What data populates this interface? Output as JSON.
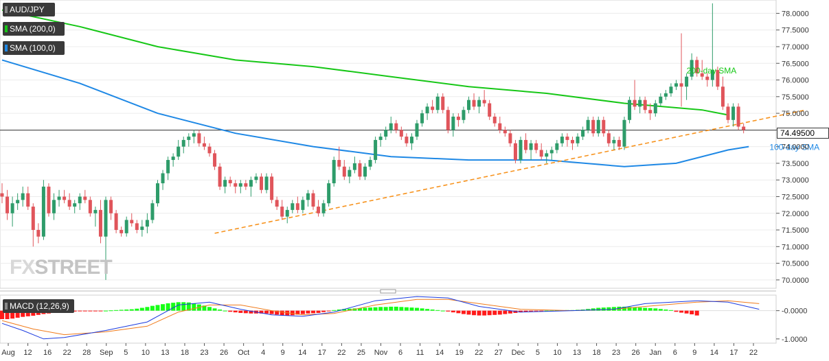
{
  "symbol": "AUD/JPY",
  "legend": [
    {
      "label": "SMA (200,0)",
      "bg": "#3a3a3a",
      "swatch": "#16c716"
    },
    {
      "label": "SMA (100,0)",
      "bg": "#3a3a3a",
      "swatch": "#1e88e5"
    }
  ],
  "watermark": {
    "fx": "FX",
    "street": "STREET"
  },
  "last_price": "74.49500",
  "macd_label": "MACD (12,26,9)",
  "colors": {
    "sma200": "#16c716",
    "sma100": "#1e88e5",
    "trendline": "#f7931e",
    "bull": "#2e9c6a",
    "bear": "#e0555b",
    "macd_pos": "#16ff16",
    "macd_neg": "#ff1a1a",
    "macd_line": "#1a3adf",
    "signal_line": "#f07a1a"
  },
  "chart_data": [
    {
      "type": "candlestick",
      "title": "AUD/JPY",
      "ylim": [
        69.75,
        78.4
      ],
      "y_ticks": [
        "78.0000",
        "77.5000",
        "77.0000",
        "76.5000",
        "76.0000",
        "75.5000",
        "75.0000",
        "74.5000",
        "74.0000",
        "73.5000",
        "73.0000",
        "72.5000",
        "72.0000",
        "71.5000",
        "71.0000",
        "70.5000",
        "70.0000"
      ],
      "x_tick_labels": [
        "Aug",
        "12",
        "16",
        "22",
        "28",
        "Sep",
        "5",
        "10",
        "13",
        "18",
        "23",
        "26",
        "Oct",
        "4",
        "9",
        "14",
        "17",
        "22",
        "25",
        "Nov",
        "6",
        "11",
        "14",
        "19",
        "22",
        "27",
        "Dec",
        "5",
        "10",
        "13",
        "18",
        "23",
        "26",
        "Jan",
        "6",
        "9",
        "14",
        "17",
        "22"
      ],
      "candles": [
        [
          72.6,
          72.9,
          72.3,
          72.5
        ],
        [
          72.5,
          72.7,
          71.8,
          72.0
        ],
        [
          72.0,
          72.5,
          71.6,
          72.3
        ],
        [
          72.3,
          72.6,
          72.1,
          72.4
        ],
        [
          72.4,
          72.8,
          72.2,
          72.6
        ],
        [
          72.6,
          72.8,
          72.1,
          72.2
        ],
        [
          72.2,
          72.3,
          71.0,
          71.5
        ],
        [
          71.5,
          71.7,
          71.1,
          71.3
        ],
        [
          71.3,
          73.0,
          71.2,
          72.8
        ],
        [
          72.8,
          72.9,
          71.9,
          72.0
        ],
        [
          72.0,
          72.6,
          71.8,
          72.4
        ],
        [
          72.4,
          72.7,
          72.2,
          72.5
        ],
        [
          72.5,
          72.7,
          72.3,
          72.4
        ],
        [
          72.4,
          72.6,
          72.1,
          72.2
        ],
        [
          72.2,
          72.4,
          72.0,
          72.3
        ],
        [
          72.3,
          72.6,
          72.1,
          72.5
        ],
        [
          72.5,
          72.7,
          72.3,
          72.4
        ],
        [
          72.4,
          72.5,
          71.9,
          72.0
        ],
        [
          72.0,
          72.2,
          71.6,
          72.1
        ],
        [
          72.1,
          72.4,
          71.1,
          71.3
        ],
        [
          71.3,
          72.5,
          70.0,
          72.4
        ],
        [
          72.4,
          72.5,
          71.8,
          72.0
        ],
        [
          72.0,
          72.1,
          71.4,
          71.5
        ],
        [
          71.5,
          71.6,
          71.3,
          71.4
        ],
        [
          71.4,
          71.9,
          71.3,
          71.8
        ],
        [
          71.8,
          72.0,
          71.6,
          71.7
        ],
        [
          71.7,
          71.8,
          71.4,
          71.5
        ],
        [
          71.5,
          71.8,
          71.3,
          71.6
        ],
        [
          71.6,
          72.0,
          71.4,
          71.8
        ],
        [
          71.8,
          72.4,
          71.7,
          72.3
        ],
        [
          72.3,
          73.0,
          72.2,
          72.9
        ],
        [
          72.9,
          73.3,
          72.7,
          73.2
        ],
        [
          73.2,
          73.7,
          73.0,
          73.6
        ],
        [
          73.6,
          73.8,
          73.4,
          73.7
        ],
        [
          73.7,
          74.2,
          73.6,
          74.0
        ],
        [
          74.0,
          74.3,
          73.8,
          74.2
        ],
        [
          74.2,
          74.4,
          74.0,
          74.3
        ],
        [
          74.3,
          74.5,
          74.1,
          74.4
        ],
        [
          74.4,
          74.5,
          74.0,
          74.1
        ],
        [
          74.1,
          74.3,
          73.9,
          74.0
        ],
        [
          74.0,
          74.1,
          73.7,
          73.8
        ],
        [
          73.8,
          73.9,
          73.3,
          73.4
        ],
        [
          73.4,
          73.5,
          72.7,
          72.8
        ],
        [
          72.8,
          73.1,
          72.6,
          73.0
        ],
        [
          73.0,
          73.1,
          72.8,
          72.9
        ],
        [
          72.9,
          73.0,
          72.6,
          72.8
        ],
        [
          72.8,
          73.0,
          72.6,
          72.9
        ],
        [
          72.9,
          73.0,
          72.7,
          72.8
        ],
        [
          72.8,
          73.1,
          72.5,
          73.0
        ],
        [
          73.0,
          73.2,
          72.9,
          73.1
        ],
        [
          73.1,
          73.2,
          72.6,
          72.7
        ],
        [
          72.7,
          73.2,
          72.6,
          73.1
        ],
        [
          73.1,
          73.2,
          72.3,
          72.4
        ],
        [
          72.4,
          72.5,
          72.1,
          72.2
        ],
        [
          72.2,
          72.4,
          71.8,
          71.9
        ],
        [
          71.9,
          72.2,
          71.7,
          72.1
        ],
        [
          72.1,
          72.4,
          72.0,
          72.3
        ],
        [
          72.3,
          72.5,
          72.0,
          72.1
        ],
        [
          72.1,
          72.5,
          72.0,
          72.4
        ],
        [
          72.4,
          72.7,
          72.2,
          72.6
        ],
        [
          72.6,
          72.7,
          72.1,
          72.2
        ],
        [
          72.2,
          72.4,
          71.9,
          72.0
        ],
        [
          72.0,
          72.4,
          71.9,
          72.3
        ],
        [
          72.3,
          73.0,
          72.2,
          72.9
        ],
        [
          72.9,
          73.7,
          72.8,
          73.6
        ],
        [
          73.6,
          74.0,
          73.3,
          73.4
        ],
        [
          73.4,
          73.6,
          73.0,
          73.1
        ],
        [
          73.1,
          73.4,
          72.9,
          73.3
        ],
        [
          73.3,
          73.7,
          73.2,
          73.5
        ],
        [
          73.5,
          73.6,
          73.0,
          73.1
        ],
        [
          73.1,
          73.5,
          73.0,
          73.4
        ],
        [
          73.4,
          73.7,
          73.3,
          73.6
        ],
        [
          73.6,
          74.3,
          73.5,
          74.2
        ],
        [
          74.2,
          74.4,
          74.0,
          74.3
        ],
        [
          74.3,
          74.6,
          74.2,
          74.5
        ],
        [
          74.5,
          74.9,
          74.4,
          74.7
        ],
        [
          74.7,
          74.8,
          74.4,
          74.5
        ],
        [
          74.5,
          74.6,
          74.2,
          74.3
        ],
        [
          74.3,
          74.4,
          74.0,
          74.1
        ],
        [
          74.1,
          74.4,
          73.9,
          74.3
        ],
        [
          74.3,
          74.8,
          74.2,
          74.7
        ],
        [
          74.7,
          75.1,
          74.6,
          75.0
        ],
        [
          75.0,
          75.3,
          74.8,
          75.2
        ],
        [
          75.2,
          75.4,
          75.0,
          75.1
        ],
        [
          75.1,
          75.6,
          75.0,
          75.5
        ],
        [
          75.5,
          75.6,
          75.0,
          75.1
        ],
        [
          75.1,
          75.2,
          74.4,
          74.5
        ],
        [
          74.5,
          75.0,
          74.3,
          74.9
        ],
        [
          74.9,
          75.0,
          74.6,
          74.8
        ],
        [
          74.8,
          75.2,
          74.7,
          75.1
        ],
        [
          75.1,
          75.5,
          75.0,
          75.4
        ],
        [
          75.4,
          75.6,
          75.1,
          75.2
        ],
        [
          75.2,
          75.5,
          75.0,
          75.4
        ],
        [
          75.4,
          75.7,
          75.2,
          75.3
        ],
        [
          75.3,
          75.4,
          74.8,
          74.9
        ],
        [
          74.9,
          75.0,
          74.6,
          74.7
        ],
        [
          74.7,
          74.9,
          74.4,
          74.5
        ],
        [
          74.5,
          74.6,
          74.3,
          74.4
        ],
        [
          74.4,
          74.5,
          74.0,
          74.1
        ],
        [
          74.1,
          74.2,
          73.5,
          73.6
        ],
        [
          73.6,
          74.3,
          73.5,
          74.2
        ],
        [
          74.2,
          74.4,
          73.8,
          73.9
        ],
        [
          73.9,
          74.2,
          73.6,
          74.1
        ],
        [
          74.1,
          74.2,
          73.8,
          73.9
        ],
        [
          73.9,
          74.1,
          73.6,
          73.7
        ],
        [
          73.7,
          73.9,
          73.5,
          73.8
        ],
        [
          73.8,
          74.0,
          73.6,
          73.9
        ],
        [
          73.9,
          74.2,
          73.8,
          74.1
        ],
        [
          74.1,
          74.4,
          74.0,
          74.3
        ],
        [
          74.3,
          74.4,
          74.0,
          74.2
        ],
        [
          74.2,
          74.3,
          73.9,
          74.1
        ],
        [
          74.1,
          74.4,
          74.0,
          74.3
        ],
        [
          74.3,
          74.6,
          74.2,
          74.5
        ],
        [
          74.5,
          74.9,
          74.4,
          74.8
        ],
        [
          74.8,
          74.9,
          74.3,
          74.4
        ],
        [
          74.4,
          74.9,
          74.3,
          74.8
        ],
        [
          74.8,
          74.9,
          74.3,
          74.4
        ],
        [
          74.4,
          74.5,
          74.0,
          74.1
        ],
        [
          74.1,
          74.3,
          73.9,
          74.2
        ],
        [
          74.2,
          74.3,
          73.9,
          74.0
        ],
        [
          74.0,
          74.9,
          73.9,
          74.8
        ],
        [
          74.8,
          75.5,
          74.7,
          75.4
        ],
        [
          75.4,
          76.0,
          75.1,
          75.2
        ],
        [
          75.2,
          75.5,
          75.0,
          75.4
        ],
        [
          75.4,
          75.5,
          75.0,
          75.1
        ],
        [
          75.1,
          75.3,
          74.8,
          75.0
        ],
        [
          75.0,
          75.4,
          74.9,
          75.3
        ],
        [
          75.3,
          75.6,
          75.2,
          75.5
        ],
        [
          75.5,
          75.7,
          75.4,
          75.6
        ],
        [
          75.6,
          75.9,
          75.5,
          75.8
        ],
        [
          75.8,
          76.0,
          75.7,
          75.9
        ],
        [
          75.9,
          77.4,
          75.2,
          75.8
        ],
        [
          75.8,
          76.2,
          75.4,
          76.1
        ],
        [
          76.1,
          76.8,
          76.0,
          76.6
        ],
        [
          76.6,
          76.7,
          76.1,
          76.2
        ],
        [
          76.2,
          76.6,
          76.0,
          76.1
        ],
        [
          76.1,
          76.2,
          75.8,
          76.0
        ],
        [
          76.0,
          78.3,
          75.8,
          76.3
        ],
        [
          76.3,
          76.4,
          75.7,
          75.8
        ],
        [
          75.8,
          76.1,
          75.1,
          75.2
        ],
        [
          75.2,
          75.3,
          74.7,
          74.8
        ],
        [
          74.8,
          75.3,
          74.6,
          75.2
        ],
        [
          75.2,
          75.3,
          74.5,
          74.6
        ],
        [
          74.6,
          74.7,
          74.4,
          74.5
        ]
      ],
      "annotations": [
        {
          "text": "200-day SMA",
          "color": "#16c716",
          "at": [
            132,
            76.2
          ]
        },
        {
          "text": "100-day SMA",
          "color": "#1e88e5",
          "at": [
            148,
            73.9
          ]
        }
      ],
      "sma200": [
        [
          0,
          78.1
        ],
        [
          15,
          77.6
        ],
        [
          30,
          77.0
        ],
        [
          45,
          76.6
        ],
        [
          60,
          76.4
        ],
        [
          75,
          76.1
        ],
        [
          90,
          75.8
        ],
        [
          105,
          75.6
        ],
        [
          120,
          75.3
        ],
        [
          135,
          75.1
        ],
        [
          140,
          74.95
        ]
      ],
      "sma100": [
        [
          0,
          76.6
        ],
        [
          15,
          75.9
        ],
        [
          30,
          75.0
        ],
        [
          45,
          74.4
        ],
        [
          60,
          74.0
        ],
        [
          75,
          73.7
        ],
        [
          90,
          73.6
        ],
        [
          105,
          73.6
        ],
        [
          120,
          73.4
        ],
        [
          130,
          73.5
        ],
        [
          140,
          73.9
        ],
        [
          144,
          74.0
        ]
      ],
      "trendline": [
        [
          41,
          71.4
        ],
        [
          155,
          75.1
        ]
      ]
    },
    {
      "type": "macd",
      "title": "MACD (12,26,9)",
      "ylim": [
        -1.15,
        0.55
      ],
      "y_ticks": [
        "-0.0000",
        "-1.0000"
      ],
      "histogram": [
        -0.3,
        -0.3,
        -0.28,
        -0.25,
        -0.22,
        -0.2,
        -0.18,
        -0.15,
        -0.12,
        -0.1,
        -0.08,
        -0.06,
        -0.05,
        -0.04,
        -0.03,
        -0.02,
        -0.02,
        -0.01,
        -0.01,
        -0.01,
        0.0,
        0.01,
        0.02,
        0.03,
        0.04,
        0.05,
        0.07,
        0.1,
        0.13,
        0.17,
        0.2,
        0.23,
        0.26,
        0.28,
        0.3,
        0.3,
        0.29,
        0.26,
        0.22,
        0.18,
        0.13,
        0.08,
        0.04,
        0.0,
        -0.04,
        -0.06,
        -0.08,
        -0.09,
        -0.1,
        -0.1,
        -0.1,
        -0.1,
        -0.12,
        -0.14,
        -0.16,
        -0.17,
        -0.16,
        -0.14,
        -0.12,
        -0.1,
        -0.09,
        -0.08,
        -0.05,
        -0.02,
        0.02,
        0.04,
        0.06,
        0.07,
        0.08,
        0.09,
        0.1,
        0.11,
        0.12,
        0.13,
        0.13,
        0.14,
        0.14,
        0.13,
        0.12,
        0.11,
        0.1,
        0.08,
        0.06,
        0.04,
        0.02,
        0.0,
        -0.03,
        -0.06,
        -0.09,
        -0.12,
        -0.14,
        -0.16,
        -0.17,
        -0.17,
        -0.16,
        -0.15,
        -0.14,
        -0.12,
        -0.1,
        -0.08,
        -0.06,
        -0.04,
        -0.03,
        -0.02,
        -0.01,
        0.0,
        0.0,
        0.01,
        0.01,
        0.02,
        0.02,
        0.03,
        0.04,
        0.06,
        0.08,
        0.1,
        0.11,
        0.12,
        0.13,
        0.14,
        0.14,
        0.13,
        0.12,
        0.11,
        0.1,
        0.09,
        0.08,
        0.06,
        0.04,
        0.02,
        -0.04,
        -0.07,
        -0.1,
        -0.13,
        -0.17
      ],
      "macd": [
        [
          0,
          -0.45
        ],
        [
          4,
          -0.7
        ],
        [
          8,
          -1.0
        ],
        [
          12,
          -0.95
        ],
        [
          20,
          -0.7
        ],
        [
          28,
          -0.4
        ],
        [
          34,
          0.2
        ],
        [
          40,
          0.3
        ],
        [
          46,
          0.05
        ],
        [
          52,
          -0.15
        ],
        [
          58,
          -0.2
        ],
        [
          64,
          -0.05
        ],
        [
          72,
          0.35
        ],
        [
          80,
          0.5
        ],
        [
          86,
          0.45
        ],
        [
          92,
          0.15
        ],
        [
          100,
          -0.05
        ],
        [
          110,
          0.0
        ],
        [
          118,
          0.05
        ],
        [
          124,
          0.25
        ],
        [
          134,
          0.35
        ],
        [
          140,
          0.3
        ],
        [
          146,
          0.05
        ]
      ],
      "signal": [
        [
          0,
          -0.35
        ],
        [
          6,
          -0.65
        ],
        [
          12,
          -0.85
        ],
        [
          20,
          -0.75
        ],
        [
          28,
          -0.55
        ],
        [
          34,
          -0.05
        ],
        [
          40,
          0.2
        ],
        [
          46,
          0.2
        ],
        [
          52,
          0.0
        ],
        [
          58,
          -0.15
        ],
        [
          64,
          -0.1
        ],
        [
          72,
          0.2
        ],
        [
          80,
          0.4
        ],
        [
          86,
          0.4
        ],
        [
          92,
          0.25
        ],
        [
          100,
          0.05
        ],
        [
          110,
          0.0
        ],
        [
          118,
          0.05
        ],
        [
          124,
          0.15
        ],
        [
          134,
          0.3
        ],
        [
          140,
          0.35
        ],
        [
          146,
          0.25
        ]
      ]
    }
  ]
}
